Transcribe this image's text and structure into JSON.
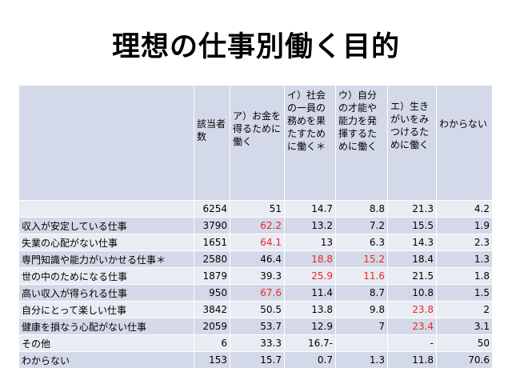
{
  "title": "理想の仕事別働く目的",
  "table": {
    "headers": [
      "",
      "該当者数",
      "ア）お金を得るために働く",
      "イ）社会の一員の務めを果たすために働く＊",
      "ウ）自分の才能や能力を発揮するために働く",
      "エ）生きがいをみつけるために働く",
      "わからない"
    ],
    "rows": [
      {
        "label": "",
        "cells": [
          "6254",
          "51",
          "14.7",
          "8.8",
          "21.3",
          "4.2"
        ],
        "highlight": [
          false,
          false,
          false,
          false,
          false,
          false
        ]
      },
      {
        "label": "収入が安定している仕事",
        "cells": [
          "3790",
          "62.2",
          "13.2",
          "7.2",
          "15.5",
          "1.9"
        ],
        "highlight": [
          false,
          true,
          false,
          false,
          false,
          false
        ]
      },
      {
        "label": "失業の心配がない仕事",
        "cells": [
          "1651",
          "64.1",
          "13",
          "6.3",
          "14.3",
          "2.3"
        ],
        "highlight": [
          false,
          true,
          false,
          false,
          false,
          false
        ]
      },
      {
        "label": "専門知識や能力がいかせる仕事＊",
        "cells": [
          "2580",
          "46.4",
          "18.8",
          "15.2",
          "18.4",
          "1.3"
        ],
        "highlight": [
          false,
          false,
          true,
          true,
          false,
          false
        ]
      },
      {
        "label": "世の中のためになる仕事",
        "cells": [
          "1879",
          "39.3",
          "25.9",
          "11.6",
          "21.5",
          "1.8"
        ],
        "highlight": [
          false,
          false,
          true,
          true,
          false,
          false
        ]
      },
      {
        "label": "高い収入が得られる仕事",
        "cells": [
          "950",
          "67.6",
          "11.4",
          "8.7",
          "10.8",
          "1.5"
        ],
        "highlight": [
          false,
          true,
          false,
          false,
          false,
          false
        ]
      },
      {
        "label": "自分にとって楽しい仕事",
        "cells": [
          "3842",
          "50.5",
          "13.8",
          "9.8",
          "23.8",
          "2"
        ],
        "highlight": [
          false,
          false,
          false,
          false,
          true,
          false
        ]
      },
      {
        "label": "健康を損なう心配がない仕事",
        "cells": [
          "2059",
          "53.7",
          "12.9",
          "7",
          "23.4",
          "3.1"
        ],
        "highlight": [
          false,
          false,
          false,
          false,
          true,
          false
        ]
      },
      {
        "label": "その他",
        "cells": [
          "6",
          "33.3",
          "16.7-",
          "",
          "-",
          "50"
        ],
        "highlight": [
          false,
          false,
          false,
          false,
          false,
          false
        ]
      },
      {
        "label": "わからない",
        "cells": [
          "153",
          "15.7",
          "0.7",
          "1.3",
          "11.8",
          "70.6"
        ],
        "highlight": [
          false,
          false,
          false,
          false,
          false,
          false
        ]
      }
    ]
  }
}
